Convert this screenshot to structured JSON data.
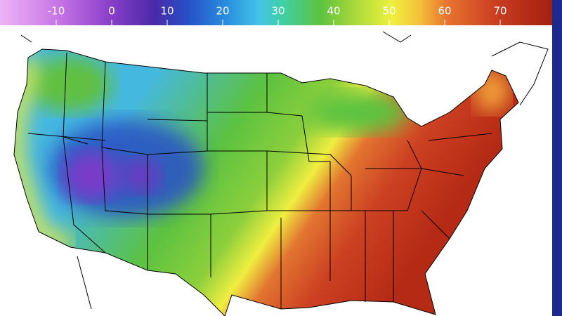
{
  "colorbar": {
    "ticks": [
      -10,
      0,
      10,
      20,
      30,
      40,
      50,
      60,
      70
    ]
  }
}
